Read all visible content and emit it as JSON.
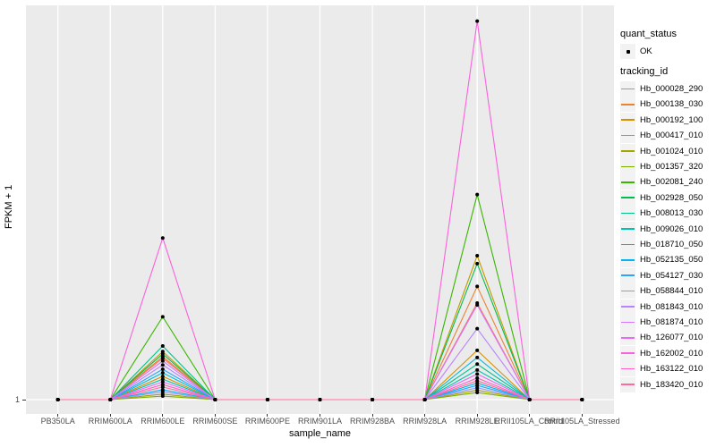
{
  "figure": {
    "background": "#FFFFFF",
    "panel_background": "#EBEBEB",
    "gridline_color": "#FFFFFF",
    "axis_text_color": "#4D4D4D",
    "point_color": "#000000"
  },
  "legend": {
    "quant_status": {
      "title": "quant_status",
      "items": [
        {
          "label": "OK",
          "glyph": "black-point"
        }
      ]
    },
    "tracking_id": {
      "title": "tracking_id"
    }
  },
  "chart_data": {
    "type": "line",
    "title": "",
    "xlabel": "sample_name",
    "ylabel": "FPKM + 1",
    "legend_position": "right",
    "grid": "vertical-major-only",
    "y_axis": {
      "ticks": [
        {
          "label": "1",
          "value": 0
        }
      ],
      "note": "Only the value 1 is labeled on the axis (log-like FPKM+1 scale). Series values below are normalized peak heights: 0 = baseline at y tick 1, 1 = panel top."
    },
    "categories": [
      "PB350LA",
      "RRIM600LA",
      "RRIM600LE",
      "RRIM600SE",
      "RRIM600PE",
      "RRIM901LA",
      "RRIM928BA",
      "RRIM928LA",
      "RRIM928LE",
      "RRII105LA_Control",
      "RRII105LA_Stressed"
    ],
    "quant_status_values": "OK for every plotted point",
    "series": [
      {
        "name": "Hb_000028_290",
        "color": "#F8766D",
        "values": [
          0,
          0,
          0.105,
          0,
          0,
          0,
          0,
          0,
          0.245,
          0,
          0
        ]
      },
      {
        "name": "Hb_000138_030",
        "color": "#EA8331",
        "values": [
          0,
          0,
          0.109,
          0,
          0,
          0,
          0,
          0,
          0.287,
          0,
          0
        ]
      },
      {
        "name": "Hb_000192_100",
        "color": "#D89000",
        "values": [
          0,
          0,
          0.059,
          0,
          0,
          0,
          0,
          0,
          0.125,
          0,
          0
        ]
      },
      {
        "name": "Hb_000417_010",
        "color": "#C09B00",
        "values": [
          0,
          0,
          0.122,
          0,
          0,
          0,
          0,
          0,
          0.365,
          0,
          0
        ]
      },
      {
        "name": "Hb_001024_010",
        "color": "#A3A500",
        "values": [
          0,
          0,
          0.014,
          0,
          0,
          0,
          0,
          0,
          0.024,
          0,
          0
        ]
      },
      {
        "name": "Hb_001357_320",
        "color": "#7CAE00",
        "values": [
          0,
          0,
          0.009,
          0,
          0,
          0,
          0,
          0,
          0.018,
          0,
          0
        ]
      },
      {
        "name": "Hb_002081_240",
        "color": "#39B600",
        "values": [
          0,
          0,
          0.21,
          0,
          0,
          0,
          0,
          0,
          0.52,
          0,
          0
        ]
      },
      {
        "name": "Hb_002928_050",
        "color": "#00BB4E",
        "values": [
          0,
          0,
          0.116,
          0,
          0,
          0,
          0,
          0,
          0.345,
          0,
          0
        ]
      },
      {
        "name": "Hb_008013_030",
        "color": "#00C087",
        "values": [
          0,
          0,
          0.136,
          0,
          0,
          0,
          0,
          0,
          0.09,
          0,
          0
        ]
      },
      {
        "name": "Hb_009026_010",
        "color": "#00C0B2",
        "values": [
          0,
          0,
          0.052,
          0,
          0,
          0,
          0,
          0,
          0.075,
          0,
          0
        ]
      },
      {
        "name": "Hb_018710_050",
        "color": "#00BCD8",
        "values": [
          0,
          0,
          0.068,
          0,
          0,
          0,
          0,
          0,
          0.107,
          0,
          0
        ]
      },
      {
        "name": "Hb_052135_050",
        "color": "#00B3F2",
        "values": [
          0,
          0,
          0.025,
          0,
          0,
          0,
          0,
          0,
          0.042,
          0,
          0
        ]
      },
      {
        "name": "Hb_054127_030",
        "color": "#29A3FF",
        "values": [
          0,
          0,
          0.077,
          0,
          0,
          0,
          0,
          0,
          0.036,
          0,
          0
        ]
      },
      {
        "name": "Hb_058844_010",
        "color": "#9590FF",
        "values": [
          0,
          0,
          0.02,
          0,
          0,
          0,
          0,
          0,
          0.03,
          0,
          0
        ]
      },
      {
        "name": "Hb_081843_010",
        "color": "#B983FF",
        "values": [
          0,
          0,
          0.088,
          0,
          0,
          0,
          0,
          0,
          0.18,
          0,
          0
        ]
      },
      {
        "name": "Hb_081874_010",
        "color": "#D376FF",
        "values": [
          0,
          0,
          0.098,
          0,
          0,
          0,
          0,
          0,
          0.24,
          0,
          0
        ]
      },
      {
        "name": "Hb_126077_010",
        "color": "#E76BF3",
        "values": [
          0,
          0,
          0.045,
          0,
          0,
          0,
          0,
          0,
          0.065,
          0,
          0
        ]
      },
      {
        "name": "Hb_162002_010",
        "color": "#FA62DB",
        "values": [
          0,
          0,
          0.41,
          0,
          0,
          0,
          0,
          0,
          0.96,
          0,
          0
        ]
      },
      {
        "name": "Hb_163122_010",
        "color": "#FF61C7",
        "values": [
          0,
          0,
          0.038,
          0,
          0,
          0,
          0,
          0,
          0.055,
          0,
          0
        ]
      },
      {
        "name": "Hb_183420_010",
        "color": "#FF6A9A",
        "values": [
          0,
          0,
          0.032,
          0,
          0,
          0,
          0,
          0,
          0.048,
          0,
          0
        ]
      }
    ]
  }
}
